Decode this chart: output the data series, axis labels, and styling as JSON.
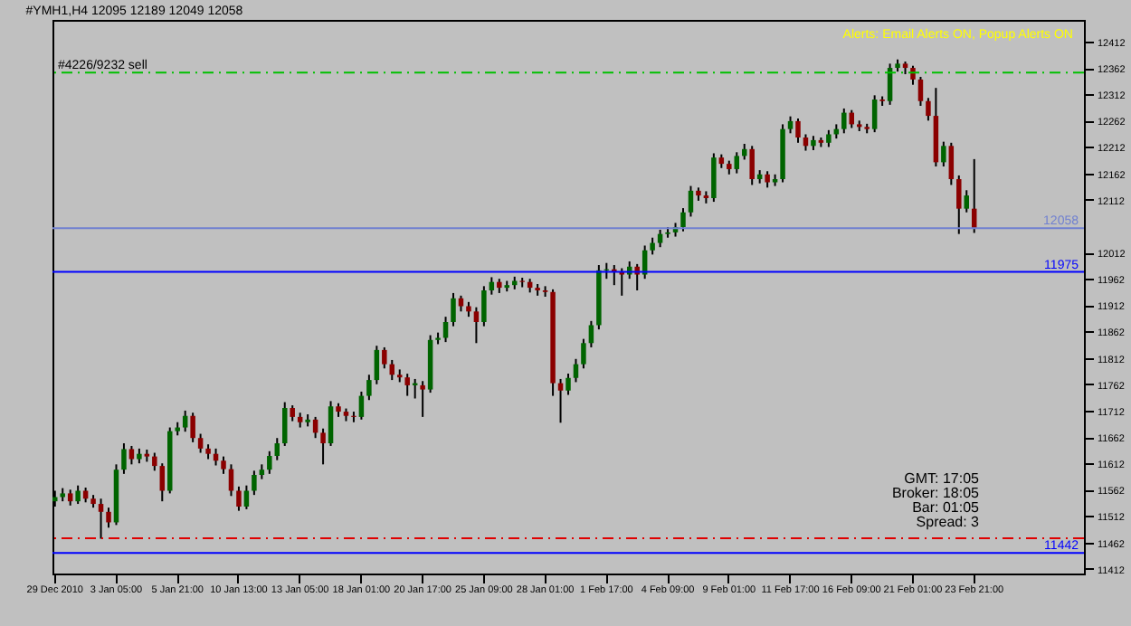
{
  "chart_data": {
    "type": "candlestick",
    "title": "#YMH1,H4  12095 12189 12049 12058",
    "annotations": [
      "Alerts:  Email Alerts ON,  Popup Alerts ON",
      "GMT:  17:05",
      "Broker:  18:05",
      "Bar:  01:05",
      "Spread:  3"
    ],
    "categories": [
      "29 Dec 2010",
      null,
      null,
      null,
      null,
      null,
      null,
      null,
      "3 Jan 05:00",
      null,
      null,
      null,
      null,
      null,
      null,
      null,
      "5 Jan 21:00",
      null,
      null,
      null,
      null,
      null,
      null,
      null,
      "10 Jan 13:00",
      null,
      null,
      null,
      null,
      null,
      null,
      null,
      "13 Jan 05:00",
      null,
      null,
      null,
      null,
      null,
      null,
      null,
      "18 Jan 01:00",
      null,
      null,
      null,
      null,
      null,
      null,
      null,
      "20 Jan 17:00",
      null,
      null,
      null,
      null,
      null,
      null,
      null,
      "25 Jan 09:00",
      null,
      null,
      null,
      null,
      null,
      null,
      null,
      "28 Jan 01:00",
      null,
      null,
      null,
      null,
      null,
      null,
      null,
      "1 Feb 17:00",
      null,
      null,
      null,
      null,
      null,
      null,
      null,
      "4 Feb 09:00",
      null,
      null,
      null,
      null,
      null,
      null,
      null,
      "9 Feb 01:00",
      null,
      null,
      null,
      null,
      null,
      null,
      null,
      "11 Feb 17:00",
      null,
      null,
      null,
      null,
      null,
      null,
      null,
      "16 Feb 09:00",
      null,
      null,
      null,
      null,
      null,
      null,
      null,
      "21 Feb 01:00",
      null,
      null,
      null,
      null,
      null,
      null,
      null,
      "23 Feb 21:00",
      null,
      null,
      null,
      null,
      null,
      null,
      null,
      null,
      null,
      null,
      null,
      null,
      null,
      null
    ],
    "ohlc": [
      [
        11540,
        11560,
        11530,
        11548
      ],
      [
        11548,
        11565,
        11540,
        11555
      ],
      [
        11555,
        11562,
        11532,
        11540
      ],
      [
        11540,
        11570,
        11535,
        11560
      ],
      [
        11560,
        11566,
        11538,
        11545
      ],
      [
        11545,
        11552,
        11528,
        11535
      ],
      [
        11535,
        11545,
        11469,
        11520
      ],
      [
        11520,
        11528,
        11490,
        11500
      ],
      [
        11500,
        11610,
        11495,
        11600
      ],
      [
        11600,
        11650,
        11592,
        11639
      ],
      [
        11639,
        11645,
        11610,
        11620
      ],
      [
        11620,
        11640,
        11612,
        11630
      ],
      [
        11630,
        11638,
        11615,
        11625
      ],
      [
        11625,
        11632,
        11598,
        11607
      ],
      [
        11607,
        11612,
        11540,
        11560
      ],
      [
        11560,
        11680,
        11555,
        11673
      ],
      [
        11673,
        11690,
        11665,
        11680
      ],
      [
        11680,
        11712,
        11672,
        11702
      ],
      [
        11702,
        11708,
        11652,
        11660
      ],
      [
        11660,
        11668,
        11632,
        11640
      ],
      [
        11640,
        11648,
        11620,
        11630
      ],
      [
        11630,
        11640,
        11608,
        11617
      ],
      [
        11617,
        11625,
        11592,
        11601
      ],
      [
        11601,
        11610,
        11550,
        11560
      ],
      [
        11560,
        11568,
        11522,
        11530
      ],
      [
        11530,
        11570,
        11525,
        11560
      ],
      [
        11560,
        11598,
        11552,
        11590
      ],
      [
        11590,
        11610,
        11582,
        11600
      ],
      [
        11600,
        11635,
        11592,
        11626
      ],
      [
        11626,
        11660,
        11618,
        11650
      ],
      [
        11650,
        11728,
        11645,
        11717
      ],
      [
        11717,
        11722,
        11692,
        11700
      ],
      [
        11700,
        11708,
        11680,
        11690
      ],
      [
        11690,
        11705,
        11682,
        11695
      ],
      [
        11695,
        11700,
        11660,
        11670
      ],
      [
        11670,
        11678,
        11610,
        11650
      ],
      [
        11650,
        11730,
        11645,
        11720
      ],
      [
        11720,
        11726,
        11700,
        11710
      ],
      [
        11710,
        11716,
        11692,
        11702
      ],
      [
        11702,
        11710,
        11690,
        11700
      ],
      [
        11700,
        11748,
        11695,
        11740
      ],
      [
        11740,
        11780,
        11732,
        11770
      ],
      [
        11770,
        11835,
        11762,
        11827
      ],
      [
        11827,
        11832,
        11792,
        11800
      ],
      [
        11800,
        11808,
        11770,
        11780
      ],
      [
        11780,
        11790,
        11766,
        11775
      ],
      [
        11775,
        11782,
        11740,
        11760
      ],
      [
        11760,
        11772,
        11735,
        11764
      ],
      [
        11760,
        11768,
        11700,
        11752
      ],
      [
        11752,
        11855,
        11746,
        11846
      ],
      [
        11846,
        11860,
        11838,
        11850
      ],
      [
        11850,
        11890,
        11842,
        11880
      ],
      [
        11880,
        11935,
        11872,
        11925
      ],
      [
        11925,
        11930,
        11900,
        11910
      ],
      [
        11910,
        11918,
        11890,
        11900
      ],
      [
        11900,
        11908,
        11840,
        11880
      ],
      [
        11880,
        11948,
        11872,
        11940
      ],
      [
        11940,
        11965,
        11932,
        11956
      ],
      [
        11956,
        11962,
        11935,
        11945
      ],
      [
        11945,
        11958,
        11938,
        11950
      ],
      [
        11950,
        11966,
        11942,
        11958
      ],
      [
        11958,
        11964,
        11946,
        11956
      ],
      [
        11956,
        11962,
        11936,
        11945
      ],
      [
        11945,
        11952,
        11930,
        11940
      ],
      [
        11940,
        11948,
        11928,
        11937
      ],
      [
        11937,
        11942,
        11740,
        11764
      ],
      [
        11764,
        11772,
        11689,
        11750
      ],
      [
        11750,
        11782,
        11742,
        11774
      ],
      [
        11774,
        11810,
        11766,
        11800
      ],
      [
        11800,
        11848,
        11792,
        11840
      ],
      [
        11840,
        11882,
        11832,
        11874
      ],
      [
        11874,
        11988,
        11866,
        11978
      ],
      [
        11978,
        11992,
        11962,
        11980
      ],
      [
        11980,
        11988,
        11950,
        11975
      ],
      [
        11975,
        11982,
        11930,
        11970
      ],
      [
        11970,
        11995,
        11962,
        11985
      ],
      [
        11985,
        11990,
        11940,
        11970
      ],
      [
        11970,
        12025,
        11962,
        12016
      ],
      [
        12016,
        12040,
        12008,
        12030
      ],
      [
        12030,
        12055,
        12022,
        12047
      ],
      [
        12047,
        12060,
        12040,
        12050
      ],
      [
        12050,
        12068,
        12042,
        12060
      ],
      [
        12060,
        12096,
        12052,
        12088
      ],
      [
        12088,
        12138,
        12080,
        12129
      ],
      [
        12129,
        12135,
        12110,
        12120
      ],
      [
        12120,
        12128,
        12105,
        12115
      ],
      [
        12115,
        12200,
        12108,
        12192
      ],
      [
        12192,
        12198,
        12172,
        12180
      ],
      [
        12180,
        12186,
        12160,
        12170
      ],
      [
        12170,
        12202,
        12162,
        12195
      ],
      [
        12195,
        12218,
        12188,
        12208
      ],
      [
        12208,
        12214,
        12140,
        12151
      ],
      [
        12151,
        12168,
        12143,
        12160
      ],
      [
        12160,
        12166,
        12135,
        12145
      ],
      [
        12145,
        12160,
        12138,
        12151
      ],
      [
        12151,
        12255,
        12145,
        12246
      ],
      [
        12246,
        12270,
        12238,
        12261
      ],
      [
        12261,
        12266,
        12220,
        12230
      ],
      [
        12230,
        12236,
        12205,
        12214
      ],
      [
        12214,
        12233,
        12206,
        12225
      ],
      [
        12225,
        12230,
        12212,
        12220
      ],
      [
        12220,
        12244,
        12212,
        12236
      ],
      [
        12236,
        12255,
        12228,
        12246
      ],
      [
        12246,
        12285,
        12238,
        12277
      ],
      [
        12277,
        12282,
        12248,
        12255
      ],
      [
        12255,
        12262,
        12242,
        12250
      ],
      [
        12250,
        12256,
        12238,
        12246
      ],
      [
        12246,
        12310,
        12240,
        12302
      ],
      [
        12302,
        12308,
        12290,
        12299
      ],
      [
        12299,
        12370,
        12292,
        12362
      ],
      [
        12362,
        12378,
        12355,
        12370
      ],
      [
        12370,
        12374,
        12350,
        12362
      ],
      [
        12362,
        12366,
        12330,
        12340
      ],
      [
        12340,
        12345,
        12290,
        12299
      ],
      [
        12299,
        12305,
        12262,
        12271
      ],
      [
        12271,
        12324,
        12175,
        12183
      ],
      [
        12183,
        12222,
        12175,
        12214
      ],
      [
        12214,
        12220,
        12140,
        12151
      ],
      [
        12151,
        12158,
        12047,
        12095
      ],
      [
        12095,
        12130,
        12088,
        12120
      ],
      [
        12095,
        12189,
        12049,
        12058
      ],
      null,
      null,
      null,
      null,
      null,
      null,
      null,
      null,
      null,
      null,
      null,
      null,
      null,
      null
    ],
    "colors": [
      "#006400",
      "#006400",
      "#8b0000",
      "#006400",
      "#8b0000",
      "#8b0000",
      "#8b0000",
      "#8b0000",
      "#006400",
      "#006400",
      "#8b0000",
      "#006400",
      "#8b0000",
      "#8b0000",
      "#8b0000",
      "#006400",
      "#006400",
      "#006400",
      "#8b0000",
      "#8b0000",
      "#8b0000",
      "#8b0000",
      "#8b0000",
      "#8b0000",
      "#8b0000",
      "#006400",
      "#006400",
      "#006400",
      "#006400",
      "#006400",
      "#006400",
      "#8b0000",
      "#8b0000",
      "#006400",
      "#8b0000",
      "#8b0000",
      "#006400",
      "#8b0000",
      "#8b0000",
      "#8b0000",
      "#006400",
      "#006400",
      "#006400",
      "#8b0000",
      "#8b0000",
      "#8b0000",
      "#8b0000",
      "#006400",
      "#8b0000",
      "#006400",
      "#006400",
      "#006400",
      "#006400",
      "#8b0000",
      "#8b0000",
      "#8b0000",
      "#006400",
      "#006400",
      "#8b0000",
      "#006400",
      "#006400",
      "#8b0000",
      "#8b0000",
      "#8b0000",
      "#8b0000",
      "#8b0000",
      "#8b0000",
      "#006400",
      "#006400",
      "#006400",
      "#006400",
      "#006400",
      "#006400",
      "#8b0000",
      "#8b0000",
      "#006400",
      "#8b0000",
      "#006400",
      "#006400",
      "#006400",
      "#006400",
      "#006400",
      "#006400",
      "#006400",
      "#8b0000",
      "#8b0000",
      "#006400",
      "#8b0000",
      "#8b0000",
      "#006400",
      "#006400",
      "#8b0000",
      "#006400",
      "#8b0000",
      "#006400",
      "#006400",
      "#006400",
      "#8b0000",
      "#8b0000",
      "#006400",
      "#8b0000",
      "#006400",
      "#006400",
      "#006400",
      "#8b0000",
      "#8b0000",
      "#8b0000",
      "#006400",
      "#8b0000",
      "#006400",
      "#006400",
      "#8b0000",
      "#8b0000",
      "#8b0000",
      "#8b0000",
      "#8b0000",
      "#006400",
      "#8b0000",
      "#8b0000",
      "#006400",
      "#8b0000",
      null,
      null,
      null,
      null,
      null,
      null,
      null,
      null,
      null,
      null,
      null,
      null,
      null,
      null
    ],
    "ylim": [
      11403,
      12453
    ],
    "yticks": [
      11412,
      11462,
      11512,
      11562,
      11612,
      11662,
      11712,
      11762,
      11812,
      11862,
      11912,
      11962,
      12012,
      12112,
      12162,
      12212,
      12262,
      12312,
      12362,
      12412
    ],
    "ref_lines": [
      {
        "axis": "y",
        "value": 12353,
        "label": "#4226/9232 sell",
        "color": "#00c000",
        "line_style": "dashed"
      },
      {
        "axis": "y",
        "value": 12058,
        "label": "12058",
        "color": "#7080d0",
        "line_style": "solid"
      },
      {
        "axis": "y",
        "value": 11975,
        "label": "11975",
        "color": "#0000ff",
        "line_style": "solid"
      },
      {
        "axis": "y",
        "value": 11470,
        "color": "#e00000",
        "line_style": "dashed"
      },
      {
        "axis": "y",
        "value": 11442,
        "label": "11442",
        "color": "#0000ff",
        "line_style": "solid"
      }
    ]
  }
}
